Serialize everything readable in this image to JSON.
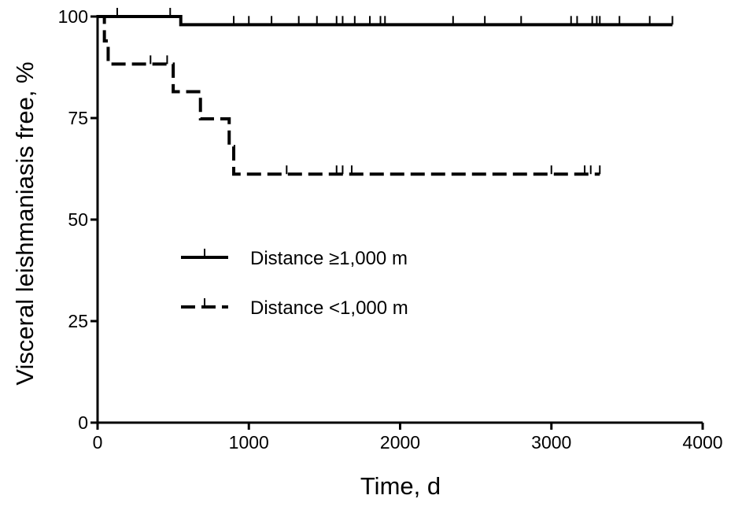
{
  "chart_data": {
    "type": "line",
    "step": true,
    "xlabel": "Time, d",
    "ylabel": "Visceral leishmaniasis free, %",
    "xlim": [
      0,
      4000
    ],
    "ylim": [
      0,
      100
    ],
    "xticks": [
      0,
      1000,
      2000,
      3000,
      4000
    ],
    "yticks": [
      0,
      25,
      50,
      75,
      100
    ],
    "grid": false,
    "legend_position": "center-left",
    "series": [
      {
        "name": "Distance ≥1,000 m",
        "style": "solid",
        "color": "#000000",
        "x": [
          0,
          550,
          3800
        ],
        "y": [
          100,
          98,
          98
        ],
        "censored_x": [
          130,
          480,
          900,
          1000,
          1150,
          1330,
          1450,
          1580,
          1620,
          1700,
          1800,
          1870,
          1900,
          2350,
          2560,
          2800,
          3130,
          3170,
          3270,
          3300,
          3320,
          3450,
          3650,
          3800
        ]
      },
      {
        "name": "Distance <1,000 m",
        "style": "dashed",
        "color": "#000000",
        "x": [
          0,
          45,
          70,
          500,
          680,
          870,
          900,
          3320
        ],
        "y": [
          100,
          94,
          88.3,
          81.5,
          74.8,
          68,
          61.2,
          61.2
        ],
        "censored_x": [
          350,
          460,
          1250,
          1580,
          1620,
          1680,
          3000,
          3220,
          3260,
          3320
        ]
      }
    ]
  }
}
